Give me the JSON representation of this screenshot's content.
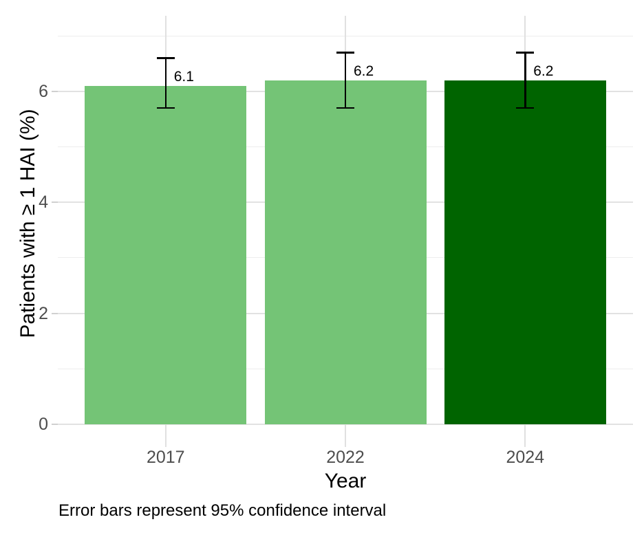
{
  "chart_data": {
    "type": "bar",
    "title": "",
    "categories": [
      "2017",
      "2022",
      "2024"
    ],
    "values": [
      6.1,
      6.2,
      6.2
    ],
    "bar_labels": [
      "6.1",
      "6.2",
      "6.2"
    ],
    "error_bars": [
      {
        "low": 5.7,
        "high": 6.6
      },
      {
        "low": 5.7,
        "high": 6.7
      },
      {
        "low": 5.7,
        "high": 6.7
      }
    ],
    "bar_colors": [
      "#74c476",
      "#74c476",
      "#006400"
    ],
    "xlabel": "Year",
    "ylabel": "Patients with ≥ 1 HAI (%)",
    "caption": "Error bars represent 95% confidence interval",
    "y_ticks": [
      0,
      2,
      4,
      6
    ],
    "y_minor_ticks": [
      1,
      3,
      5,
      7
    ],
    "ylim": [
      0,
      7.4
    ],
    "legend": "none",
    "grid": "horizontal major+minor, vertical major at each category",
    "colors": {
      "tick_label": "#4d4d4d",
      "axis_title": "#000000",
      "bar_label": "#000000",
      "error_bar": "#000000"
    }
  }
}
